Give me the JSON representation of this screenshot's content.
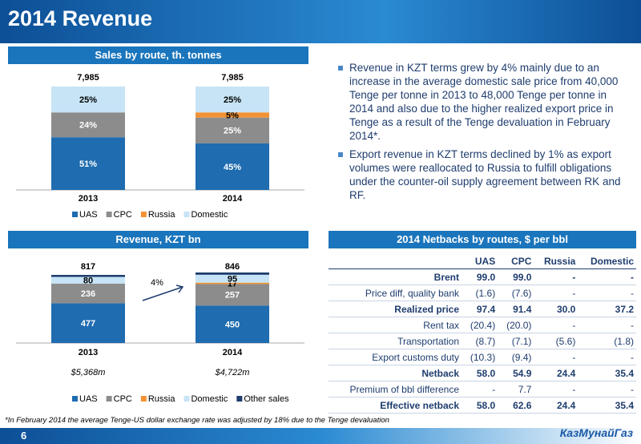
{
  "header": {
    "title": "2014 Revenue"
  },
  "chart_data": [
    {
      "type": "stacked-bar",
      "title": "Sales by route, th. tonnes",
      "categories": [
        "2013",
        "2014"
      ],
      "totals": {
        "values": [
          7985,
          7985
        ],
        "value_labels": [
          "7,985",
          "7,985"
        ]
      },
      "series": [
        {
          "name": "UAS",
          "color": "#1f6cb0",
          "values": [
            51,
            45
          ],
          "value_labels": [
            "51%",
            "45%"
          ]
        },
        {
          "name": "CPC",
          "color": "#8c8c8c",
          "values": [
            24,
            25
          ],
          "value_labels": [
            "24%",
            "25%"
          ]
        },
        {
          "name": "Russia",
          "color": "#f39234",
          "values": [
            null,
            5
          ],
          "value_labels": [
            null,
            "5%"
          ]
        },
        {
          "name": "Domestic",
          "color": "#c7e4f6",
          "values": [
            25,
            25
          ],
          "value_labels": [
            "25%",
            "25%"
          ]
        }
      ]
    },
    {
      "type": "stacked-bar",
      "title": "Revenue, KZT bn",
      "categories": [
        "2013",
        "2014"
      ],
      "sublabels": [
        "$5,368m",
        "$4,722m"
      ],
      "annotation": "4%",
      "totals": {
        "values": [
          817,
          846
        ]
      },
      "series": [
        {
          "name": "UAS",
          "color": "#1f6cb0",
          "values": [
            477,
            450
          ]
        },
        {
          "name": "CPC",
          "color": "#8c8c8c",
          "values": [
            236,
            257
          ]
        },
        {
          "name": "Russia",
          "color": "#f39234",
          "values": [
            null,
            17
          ]
        },
        {
          "name": "Domestic",
          "color": "#c7e4f6",
          "values": [
            80,
            95
          ]
        },
        {
          "name": "Other sales",
          "color": "#1f3d6e",
          "values": [
            24,
            27
          ],
          "labels": false
        }
      ]
    }
  ],
  "bullets": [
    "Revenue in KZT terms grew by 4% mainly due to an increase in the average domestic sale price from 40,000 Tenge per tonne in 2013 to 48,000 Tenge per tonne in 2014 and also due to the higher realized export price in Tenge as a result of the Tenge devaluation in February 2014*.",
    "Export revenue in KZT terms declined by 1% as export volumes were reallocated to Russia to fulfill obligations under the counter-oil supply agreement between RK and RF."
  ],
  "table": {
    "title": "2014 Netbacks by routes, $ per bbl",
    "columns": [
      "UAS",
      "CPC",
      "Russia",
      "Domestic"
    ],
    "rows": [
      {
        "label": "Brent",
        "cells": [
          "99.0",
          "99.0",
          "-",
          "-"
        ],
        "bold": true
      },
      {
        "label": "Price diff, quality bank",
        "cells": [
          "(1.6)",
          "(7.6)",
          "-",
          "-"
        ]
      },
      {
        "label": "Realized price",
        "cells": [
          "97.4",
          "91.4",
          "30.0",
          "37.2"
        ],
        "bold": true
      },
      {
        "label": "Rent tax",
        "cells": [
          "(20.4)",
          "(20.0)",
          "-",
          "-"
        ]
      },
      {
        "label": "Transportation",
        "cells": [
          "(8.7)",
          "(7.1)",
          "(5.6)",
          "(1.8)"
        ]
      },
      {
        "label": "Export customs duty",
        "cells": [
          "(10.3)",
          "(9.4)",
          "-",
          "-"
        ]
      },
      {
        "label": "Netback",
        "cells": [
          "58.0",
          "54.9",
          "24.4",
          "35.4"
        ],
        "bold": true
      },
      {
        "label": "Premium of bbl difference",
        "cells": [
          "-",
          "7.7",
          "-",
          "-"
        ]
      },
      {
        "label": "Effective netback",
        "cells": [
          "58.0",
          "62.6",
          "24.4",
          "35.4"
        ],
        "bold": true
      }
    ]
  },
  "footnote": "*In February 2014 the average Tenge-US dollar exchange rate was adjusted by 18% due to the Tenge devaluation",
  "footer": {
    "page": "6",
    "logo": "КазМунайГаз"
  }
}
